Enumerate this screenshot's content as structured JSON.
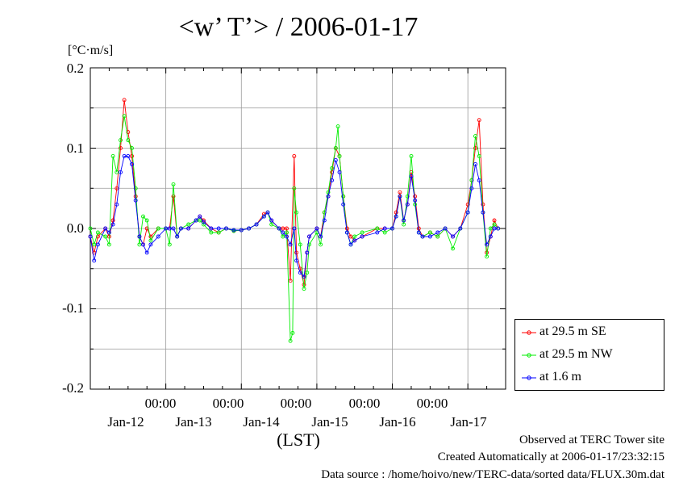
{
  "chart_data": {
    "type": "line",
    "title": "<w’ T’> / 2006-01-17",
    "unit": "[°C·m/s]",
    "xlabel": "(LST)",
    "ylim": [
      -0.2,
      0.2
    ],
    "yticks": [
      "0.2",
      "0.1",
      "0.0",
      "-0.1",
      "-0.2"
    ],
    "x_time_ticks": [
      "00:00",
      "00:00",
      "00:00",
      "00:00",
      "00:00"
    ],
    "x_date_labels": [
      "Jan-12",
      "Jan-13",
      "Jan-14",
      "Jan-15",
      "Jan-16",
      "Jan-17"
    ],
    "x_units": "days since Jan-11 18:00",
    "grid": true,
    "legend_position": "bottom-right",
    "series": [
      {
        "name": "at 29.5 m SE",
        "color": "#ff0000",
        "points": [
          [
            0,
            -0.01
          ],
          [
            0.05,
            -0.03
          ],
          [
            0.1,
            -0.01
          ],
          [
            0.2,
            0.0
          ],
          [
            0.25,
            -0.01
          ],
          [
            0.3,
            0.01
          ],
          [
            0.35,
            0.05
          ],
          [
            0.4,
            0.1
          ],
          [
            0.45,
            0.16
          ],
          [
            0.5,
            0.12
          ],
          [
            0.55,
            0.09
          ],
          [
            0.6,
            0.04
          ],
          [
            0.65,
            -0.01
          ],
          [
            0.7,
            -0.02
          ],
          [
            0.75,
            0.0
          ],
          [
            0.8,
            -0.01
          ],
          [
            0.9,
            0.0
          ],
          [
            1.0,
            0.0
          ],
          [
            1.05,
            0.0
          ],
          [
            1.1,
            0.04
          ],
          [
            1.15,
            -0.01
          ],
          [
            1.2,
            0.0
          ],
          [
            1.3,
            0.0
          ],
          [
            1.4,
            0.01
          ],
          [
            1.45,
            0.015
          ],
          [
            1.5,
            0.01
          ],
          [
            1.6,
            0.0
          ],
          [
            1.7,
            -0.005
          ],
          [
            1.8,
            0.0
          ],
          [
            1.9,
            -0.003
          ],
          [
            2.0,
            -0.002
          ],
          [
            2.1,
            0.0
          ],
          [
            2.2,
            0.005
          ],
          [
            2.3,
            0.018
          ],
          [
            2.35,
            0.02
          ],
          [
            2.4,
            0.01
          ],
          [
            2.5,
            0.0
          ],
          [
            2.55,
            0.0
          ],
          [
            2.6,
            0.0
          ],
          [
            2.65,
            -0.065
          ],
          [
            2.7,
            0.09
          ],
          [
            2.73,
            -0.03
          ],
          [
            2.78,
            -0.05
          ],
          [
            2.83,
            -0.07
          ],
          [
            2.87,
            -0.03
          ],
          [
            2.9,
            -0.01
          ],
          [
            3.0,
            0.0
          ],
          [
            3.05,
            -0.01
          ],
          [
            3.1,
            0.02
          ],
          [
            3.15,
            0.04
          ],
          [
            3.2,
            0.07
          ],
          [
            3.25,
            0.1
          ],
          [
            3.3,
            0.09
          ],
          [
            3.35,
            0.04
          ],
          [
            3.4,
            0.0
          ],
          [
            3.45,
            -0.01
          ],
          [
            3.5,
            -0.015
          ],
          [
            3.6,
            -0.01
          ],
          [
            3.8,
            0.0
          ],
          [
            3.9,
            0.0
          ],
          [
            4.0,
            0.0
          ],
          [
            4.05,
            0.02
          ],
          [
            4.1,
            0.045
          ],
          [
            4.15,
            0.01
          ],
          [
            4.2,
            0.03
          ],
          [
            4.25,
            0.07
          ],
          [
            4.3,
            0.04
          ],
          [
            4.35,
            0.0
          ],
          [
            4.4,
            -0.01
          ],
          [
            4.5,
            -0.005
          ],
          [
            4.6,
            -0.01
          ],
          [
            4.7,
            0.0
          ],
          [
            4.8,
            -0.01
          ],
          [
            4.9,
            0.0
          ],
          [
            5.0,
            0.03
          ],
          [
            5.05,
            0.06
          ],
          [
            5.1,
            0.1
          ],
          [
            5.15,
            0.135
          ],
          [
            5.2,
            0.03
          ],
          [
            5.25,
            -0.03
          ],
          [
            5.3,
            -0.01
          ],
          [
            5.35,
            0.01
          ],
          [
            5.4,
            0.0
          ]
        ]
      },
      {
        "name": "at 29.5 m NW",
        "color": "#00ee00",
        "points": [
          [
            0,
            0.0
          ],
          [
            0.05,
            -0.02
          ],
          [
            0.1,
            -0.005
          ],
          [
            0.2,
            -0.01
          ],
          [
            0.25,
            -0.02
          ],
          [
            0.3,
            0.09
          ],
          [
            0.35,
            0.07
          ],
          [
            0.4,
            0.11
          ],
          [
            0.45,
            0.14
          ],
          [
            0.5,
            0.11
          ],
          [
            0.55,
            0.1
          ],
          [
            0.6,
            0.05
          ],
          [
            0.65,
            -0.02
          ],
          [
            0.7,
            0.015
          ],
          [
            0.75,
            0.01
          ],
          [
            0.8,
            -0.015
          ],
          [
            0.9,
            0.0
          ],
          [
            1.0,
            0.0
          ],
          [
            1.05,
            -0.02
          ],
          [
            1.1,
            0.055
          ],
          [
            1.15,
            -0.01
          ],
          [
            1.2,
            0.0
          ],
          [
            1.3,
            0.005
          ],
          [
            1.4,
            0.01
          ],
          [
            1.45,
            0.01
          ],
          [
            1.5,
            0.005
          ],
          [
            1.6,
            -0.005
          ],
          [
            1.7,
            -0.005
          ],
          [
            1.8,
            0.0
          ],
          [
            1.9,
            -0.003
          ],
          [
            2.0,
            -0.002
          ],
          [
            2.1,
            0.0
          ],
          [
            2.2,
            0.005
          ],
          [
            2.3,
            0.015
          ],
          [
            2.35,
            0.02
          ],
          [
            2.4,
            0.005
          ],
          [
            2.5,
            0.0
          ],
          [
            2.55,
            -0.01
          ],
          [
            2.6,
            -0.005
          ],
          [
            2.65,
            -0.14
          ],
          [
            2.68,
            -0.13
          ],
          [
            2.7,
            0.05
          ],
          [
            2.73,
            0.02
          ],
          [
            2.78,
            -0.02
          ],
          [
            2.83,
            -0.075
          ],
          [
            2.87,
            -0.055
          ],
          [
            2.9,
            -0.02
          ],
          [
            3.0,
            -0.005
          ],
          [
            3.05,
            -0.02
          ],
          [
            3.1,
            0.02
          ],
          [
            3.15,
            0.045
          ],
          [
            3.2,
            0.075
          ],
          [
            3.25,
            0.1
          ],
          [
            3.28,
            0.127
          ],
          [
            3.3,
            0.09
          ],
          [
            3.35,
            0.04
          ],
          [
            3.4,
            -0.005
          ],
          [
            3.45,
            -0.02
          ],
          [
            3.5,
            -0.01
          ],
          [
            3.6,
            -0.005
          ],
          [
            3.8,
            0.0
          ],
          [
            3.9,
            -0.005
          ],
          [
            4.0,
            0.0
          ],
          [
            4.05,
            0.015
          ],
          [
            4.1,
            0.04
          ],
          [
            4.15,
            0.005
          ],
          [
            4.2,
            0.04
          ],
          [
            4.25,
            0.09
          ],
          [
            4.3,
            0.03
          ],
          [
            4.35,
            -0.005
          ],
          [
            4.4,
            -0.01
          ],
          [
            4.5,
            -0.005
          ],
          [
            4.6,
            -0.01
          ],
          [
            4.7,
            0.0
          ],
          [
            4.8,
            -0.025
          ],
          [
            4.9,
            0.0
          ],
          [
            5.0,
            0.02
          ],
          [
            5.05,
            0.06
          ],
          [
            5.1,
            0.115
          ],
          [
            5.15,
            0.09
          ],
          [
            5.2,
            0.02
          ],
          [
            5.25,
            -0.035
          ],
          [
            5.3,
            0.0
          ],
          [
            5.35,
            0.005
          ],
          [
            5.4,
            0.0
          ]
        ]
      },
      {
        "name": "at 1.6 m",
        "color": "#0000ff",
        "points": [
          [
            0,
            -0.01
          ],
          [
            0.05,
            -0.04
          ],
          [
            0.1,
            -0.02
          ],
          [
            0.2,
            0.0
          ],
          [
            0.25,
            -0.005
          ],
          [
            0.3,
            0.005
          ],
          [
            0.35,
            0.03
          ],
          [
            0.4,
            0.07
          ],
          [
            0.45,
            0.09
          ],
          [
            0.5,
            0.09
          ],
          [
            0.55,
            0.08
          ],
          [
            0.6,
            0.035
          ],
          [
            0.65,
            -0.01
          ],
          [
            0.7,
            -0.02
          ],
          [
            0.75,
            -0.03
          ],
          [
            0.8,
            -0.02
          ],
          [
            0.9,
            -0.01
          ],
          [
            1.0,
            0.0
          ],
          [
            1.05,
            0.0
          ],
          [
            1.1,
            0.0
          ],
          [
            1.15,
            -0.01
          ],
          [
            1.2,
            0.0
          ],
          [
            1.3,
            0.0
          ],
          [
            1.4,
            0.01
          ],
          [
            1.45,
            0.015
          ],
          [
            1.5,
            0.008
          ],
          [
            1.6,
            0.0
          ],
          [
            1.7,
            0.0
          ],
          [
            1.8,
            0.0
          ],
          [
            1.9,
            -0.002
          ],
          [
            2.0,
            -0.002
          ],
          [
            2.1,
            0.0
          ],
          [
            2.2,
            0.005
          ],
          [
            2.3,
            0.015
          ],
          [
            2.35,
            0.02
          ],
          [
            2.4,
            0.01
          ],
          [
            2.5,
            0.0
          ],
          [
            2.55,
            -0.005
          ],
          [
            2.6,
            -0.01
          ],
          [
            2.65,
            -0.02
          ],
          [
            2.7,
            0.0
          ],
          [
            2.73,
            -0.04
          ],
          [
            2.78,
            -0.055
          ],
          [
            2.83,
            -0.06
          ],
          [
            2.87,
            -0.03
          ],
          [
            2.9,
            -0.01
          ],
          [
            3.0,
            0.0
          ],
          [
            3.05,
            -0.01
          ],
          [
            3.1,
            0.01
          ],
          [
            3.15,
            0.04
          ],
          [
            3.2,
            0.06
          ],
          [
            3.25,
            0.085
          ],
          [
            3.3,
            0.07
          ],
          [
            3.35,
            0.03
          ],
          [
            3.4,
            -0.005
          ],
          [
            3.45,
            -0.02
          ],
          [
            3.5,
            -0.015
          ],
          [
            3.6,
            -0.01
          ],
          [
            3.8,
            -0.005
          ],
          [
            3.9,
            0.0
          ],
          [
            4.0,
            0.0
          ],
          [
            4.05,
            0.015
          ],
          [
            4.1,
            0.04
          ],
          [
            4.15,
            0.01
          ],
          [
            4.2,
            0.03
          ],
          [
            4.25,
            0.065
          ],
          [
            4.3,
            0.035
          ],
          [
            4.35,
            -0.005
          ],
          [
            4.4,
            -0.01
          ],
          [
            4.5,
            -0.01
          ],
          [
            4.6,
            -0.005
          ],
          [
            4.7,
            0.0
          ],
          [
            4.8,
            -0.01
          ],
          [
            4.9,
            0.0
          ],
          [
            5.0,
            0.02
          ],
          [
            5.05,
            0.05
          ],
          [
            5.1,
            0.08
          ],
          [
            5.15,
            0.06
          ],
          [
            5.2,
            0.02
          ],
          [
            5.25,
            -0.02
          ],
          [
            5.3,
            -0.01
          ],
          [
            5.35,
            0.0
          ],
          [
            5.4,
            0.0
          ]
        ]
      }
    ]
  },
  "footer": {
    "line1": "Observed at TERC Tower site",
    "line2": "Created Automatically at 2006-01-17/23:32:15",
    "line3": "Data source : /home/hoivo/new/TERC-data/sorted data/FLUX.30m.dat"
  }
}
